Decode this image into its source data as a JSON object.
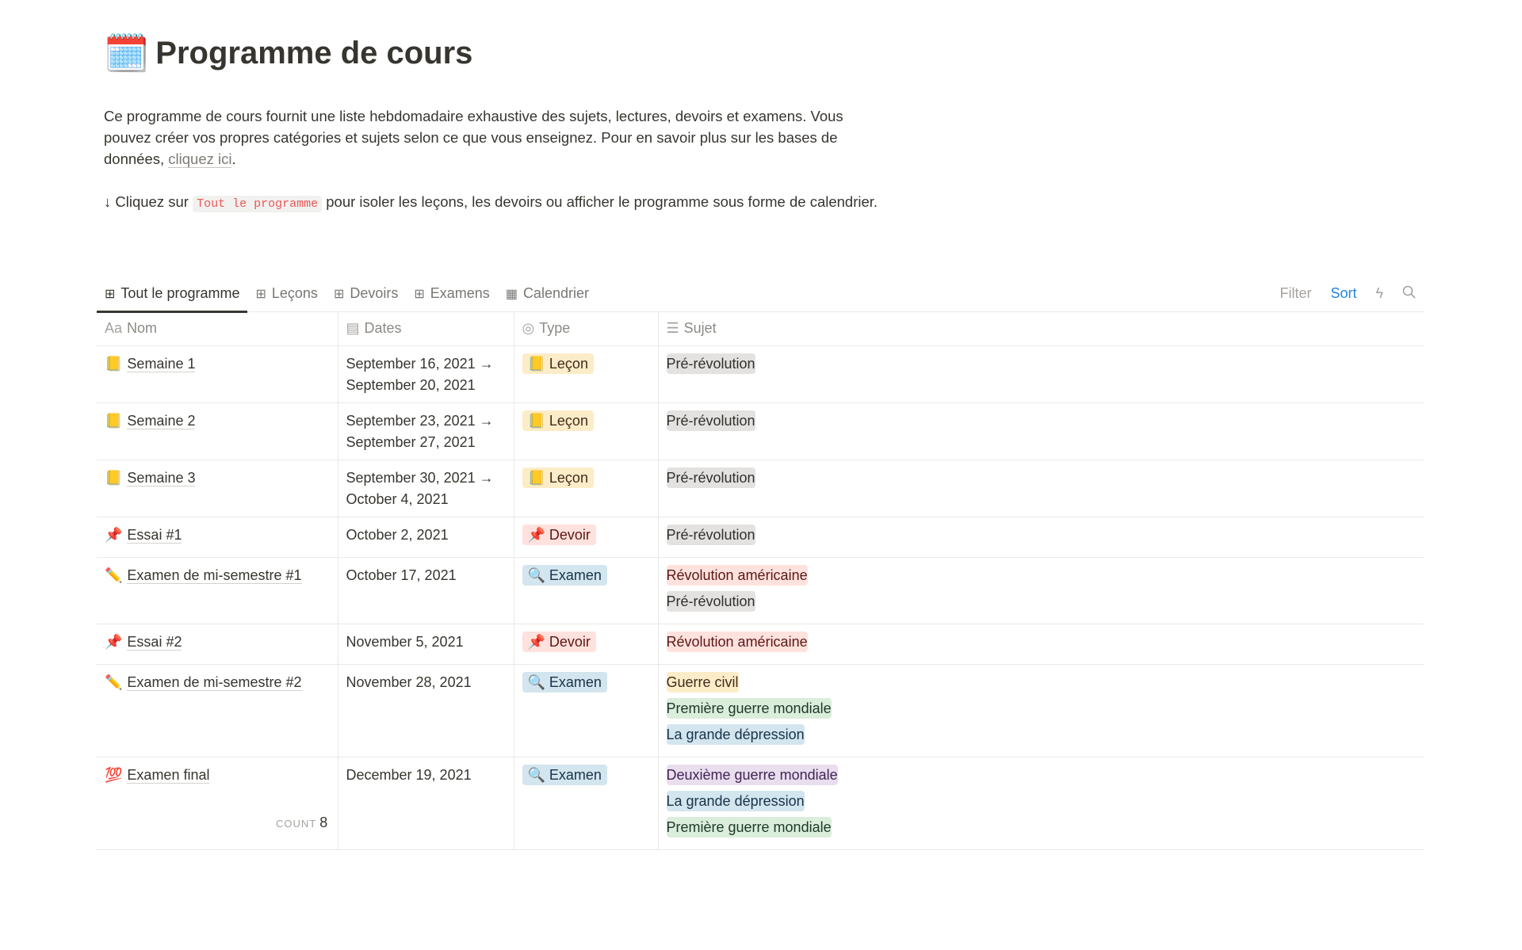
{
  "page": {
    "icon": "🗓️",
    "title": "Programme de cours",
    "desc_before": "Ce programme de cours fournit une liste hebdomadaire exhaustive des sujets, lectures, devoirs et examens. Vous pouvez créer vos propres catégories et sujets selon ce que vous enseignez. Pour en savoir plus sur les bases de données, ",
    "desc_link": "cliquez ici",
    "desc_after": ".",
    "hint_before": "↓ Cliquez sur ",
    "hint_code": "Tout le programme",
    "hint_after": " pour isoler les leçons, les devoirs ou afficher le programme sous forme de calendrier."
  },
  "tabs": [
    {
      "label": "Tout le programme",
      "icon": "table-icon",
      "active": true
    },
    {
      "label": "Leçons",
      "icon": "table-icon"
    },
    {
      "label": "Devoirs",
      "icon": "table-icon"
    },
    {
      "label": "Examens",
      "icon": "table-icon"
    },
    {
      "label": "Calendrier",
      "icon": "calendar-icon"
    }
  ],
  "toolbar": {
    "filter": "Filter",
    "sort": "Sort",
    "automation_icon": "lightning-icon",
    "search_icon": "search-icon"
  },
  "columns": [
    {
      "icon": "Aa",
      "label": "Nom"
    },
    {
      "icon": "▤",
      "label": "Dates"
    },
    {
      "icon": "◎",
      "label": "Type"
    },
    {
      "icon": "☰",
      "label": "Sujet"
    }
  ],
  "colors": {
    "yellow": [
      "#fdecc8",
      "#402c1b"
    ],
    "red": [
      "#ffe2dd",
      "#5d1715"
    ],
    "blue": [
      "#d3e5ef",
      "#183347"
    ],
    "gray": [
      "#e3e2e0",
      "#32302c"
    ],
    "green": [
      "#dbeddb",
      "#1c3829"
    ],
    "purple": [
      "#e8deee",
      "#412454"
    ]
  },
  "rows": [
    {
      "icon": "📒",
      "name": "Semaine 1",
      "dates": "September 16, 2021 → September 20, 2021",
      "type": {
        "label": "📒 Leçon",
        "color": "yellow"
      },
      "subjects": [
        {
          "label": "Pré-révolution",
          "color": "gray"
        }
      ]
    },
    {
      "icon": "📒",
      "name": "Semaine 2",
      "dates": "September 23, 2021 → September 27, 2021",
      "type": {
        "label": "📒 Leçon",
        "color": "yellow"
      },
      "subjects": [
        {
          "label": "Pré-révolution",
          "color": "gray"
        }
      ]
    },
    {
      "icon": "📒",
      "name": "Semaine 3",
      "dates": "September 30, 2021 → October 4, 2021",
      "type": {
        "label": "📒 Leçon",
        "color": "yellow"
      },
      "subjects": [
        {
          "label": "Pré-révolution",
          "color": "gray"
        }
      ]
    },
    {
      "icon": "📌",
      "name": "Essai #1",
      "dates": "October 2, 2021",
      "type": {
        "label": "📌 Devoir",
        "color": "red"
      },
      "subjects": [
        {
          "label": "Pré-révolution",
          "color": "gray"
        }
      ]
    },
    {
      "icon": "✏️",
      "name": "Examen de mi-semestre #1",
      "dates": "October 17, 2021",
      "type": {
        "label": "🔍 Examen",
        "color": "blue"
      },
      "subjects": [
        {
          "label": "Révolution américaine",
          "color": "red"
        },
        {
          "label": "Pré-révolution",
          "color": "gray"
        }
      ]
    },
    {
      "icon": "📌",
      "name": "Essai #2",
      "dates": "November 5, 2021",
      "type": {
        "label": "📌 Devoir",
        "color": "red"
      },
      "subjects": [
        {
          "label": "Révolution américaine",
          "color": "red"
        }
      ]
    },
    {
      "icon": "✏️",
      "name": "Examen de mi-semestre #2",
      "dates": "November 28, 2021",
      "type": {
        "label": "🔍 Examen",
        "color": "blue"
      },
      "subjects": [
        {
          "label": "Guerre civil",
          "color": "yellow"
        },
        {
          "label": "Première guerre mondiale",
          "color": "green"
        },
        {
          "label": "La grande dépression",
          "color": "blue"
        }
      ]
    },
    {
      "icon": "💯",
      "name": "Examen final",
      "dates": "December 19, 2021",
      "type": {
        "label": "🔍 Examen",
        "color": "blue"
      },
      "subjects": [
        {
          "label": "Deuxième guerre mondiale",
          "color": "purple"
        },
        {
          "label": "La grande dépression",
          "color": "blue"
        },
        {
          "label": "Première guerre mondiale",
          "color": "green"
        }
      ]
    }
  ],
  "footer": {
    "count_label": "COUNT",
    "count_value": "8"
  }
}
